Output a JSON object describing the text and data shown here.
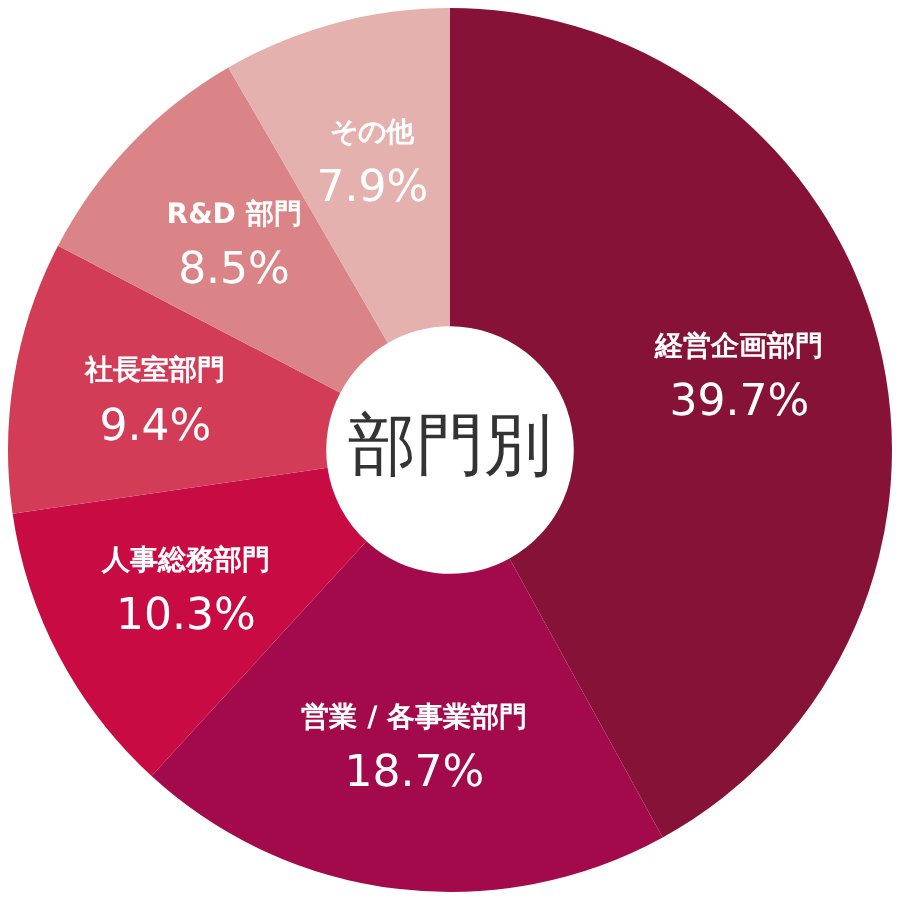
{
  "chart_data": {
    "type": "donut",
    "title": "部門別",
    "categories": [
      "経営企画部門",
      "営業 / 各事業部門",
      "人事総務部門",
      "社長室部門",
      "R&D 部門",
      "その他"
    ],
    "values": [
      39.7,
      18.7,
      10.3,
      9.4,
      8.5,
      7.9
    ],
    "colors": [
      "#861238",
      "#a20a4c",
      "#c80c43",
      "#d23c57",
      "#db8487",
      "#e4b1af"
    ],
    "value_labels": [
      "39.7%",
      "18.7%",
      "10.3%",
      "9.4%",
      "8.5%",
      "7.9%"
    ],
    "legend": false
  }
}
